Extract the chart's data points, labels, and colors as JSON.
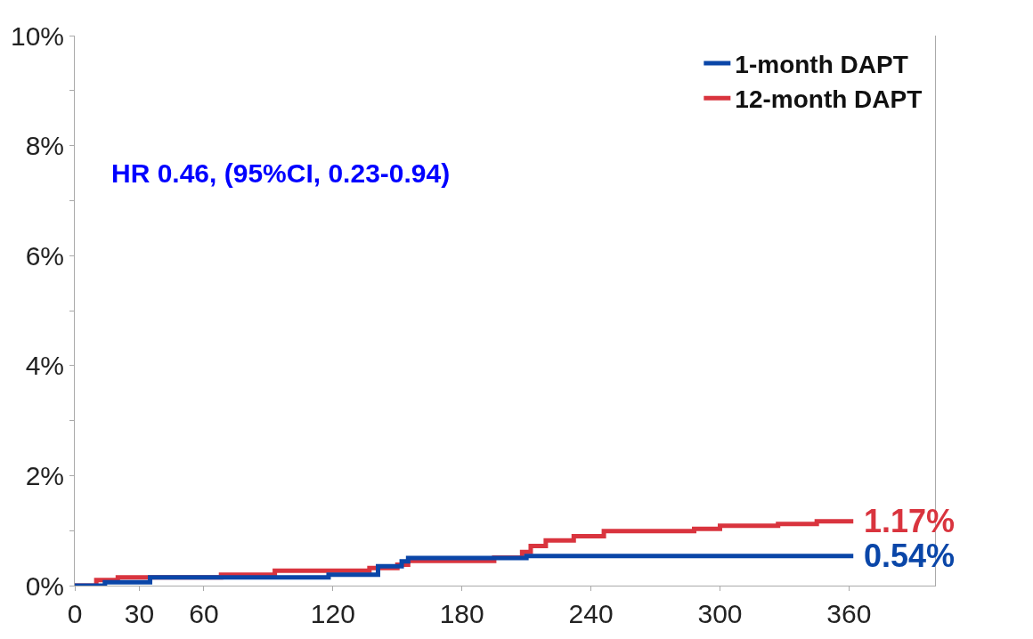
{
  "chart_data": {
    "type": "step",
    "xlim": [
      0,
      400
    ],
    "ylim": [
      0,
      10
    ],
    "xticks": [
      0,
      30,
      60,
      120,
      180,
      240,
      300,
      360
    ],
    "yticks": [
      {
        "value": 0,
        "label": "0%"
      },
      {
        "value": 1,
        "label": null
      },
      {
        "value": 2,
        "label": "2%"
      },
      {
        "value": 3,
        "label": null
      },
      {
        "value": 4,
        "label": "4%"
      },
      {
        "value": 5,
        "label": null
      },
      {
        "value": 6,
        "label": "6%"
      },
      {
        "value": 7,
        "label": null
      },
      {
        "value": 8,
        "label": "8%"
      },
      {
        "value": 9,
        "label": null
      },
      {
        "value": 10,
        "label": "10%"
      }
    ],
    "series": [
      {
        "name": "12-month DAPT",
        "color": "#d9343e",
        "x": [
          0,
          10,
          20,
          68,
          93,
          137,
          150,
          155,
          195,
          208,
          212,
          219,
          232,
          246,
          288,
          300,
          327,
          345,
          362
        ],
        "values": [
          0,
          0.1,
          0.15,
          0.2,
          0.27,
          0.32,
          0.38,
          0.45,
          0.51,
          0.61,
          0.72,
          0.82,
          0.9,
          0.99,
          1.03,
          1.09,
          1.12,
          1.17,
          1.17
        ]
      },
      {
        "name": "1-month DAPT",
        "color": "#0a46a8",
        "x": [
          0,
          14,
          35,
          118,
          141,
          152,
          155,
          210,
          362
        ],
        "values": [
          0,
          0.06,
          0.15,
          0.2,
          0.35,
          0.44,
          0.5,
          0.54,
          0.54
        ]
      }
    ],
    "annotations": [
      "HR 0.46, (95%CI, 0.23-0.94)",
      {
        "text": "1.17%",
        "x": 362,
        "y": 1.17
      },
      {
        "text": "0.54%",
        "x": 362,
        "y": 0.54
      }
    ],
    "legend": "top right",
    "marker": "none",
    "line_style": "solid"
  }
}
